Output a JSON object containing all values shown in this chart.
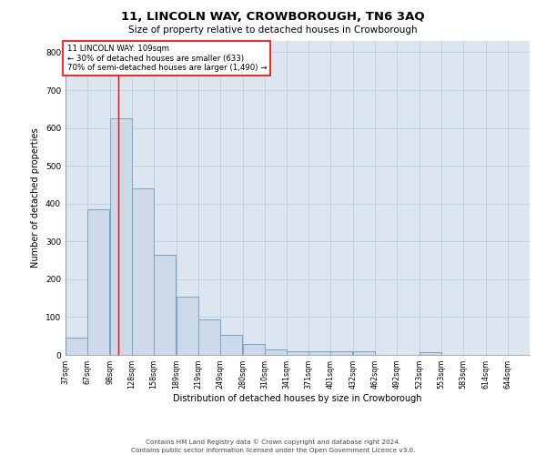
{
  "title": "11, LINCOLN WAY, CROWBOROUGH, TN6 3AQ",
  "subtitle": "Size of property relative to detached houses in Crowborough",
  "xlabel": "Distribution of detached houses by size in Crowborough",
  "ylabel": "Number of detached properties",
  "footnote1": "Contains HM Land Registry data © Crown copyright and database right 2024.",
  "footnote2": "Contains public sector information licensed under the Open Government Licence v3.0.",
  "bar_edges": [
    37,
    67,
    98,
    128,
    158,
    189,
    219,
    249,
    280,
    310,
    341,
    371,
    401,
    432,
    462,
    492,
    523,
    553,
    583,
    614,
    644
  ],
  "bar_heights": [
    45,
    385,
    625,
    440,
    265,
    155,
    95,
    52,
    28,
    15,
    10,
    10,
    10,
    10,
    0,
    0,
    8,
    0,
    0,
    0,
    0
  ],
  "bar_color": "#ccd9e8",
  "bar_edgecolor": "#7aa3c0",
  "grid_color": "#b8c8d8",
  "bg_color": "#dce6f0",
  "red_line_x": 109,
  "annotation_title": "11 LINCOLN WAY: 109sqm",
  "annotation_line2": "← 30% of detached houses are smaller (633)",
  "annotation_line3": "70% of semi-detached houses are larger (1,490) →",
  "ylim": [
    0,
    830
  ],
  "yticks": [
    0,
    100,
    200,
    300,
    400,
    500,
    600,
    700,
    800
  ]
}
